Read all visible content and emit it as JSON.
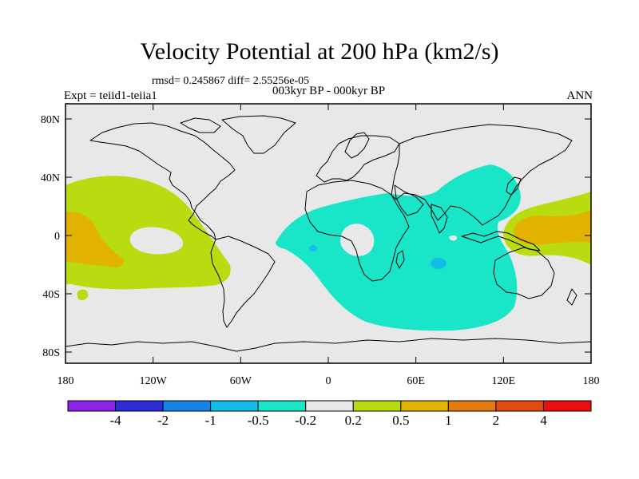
{
  "title": "Velocity Potential at 200 hPa (km2/s)",
  "stats": "rmsd= 0.245867 diff= 2.55256e-05",
  "subtitle": "003kyr BP - 000kyr BP",
  "experiment": "Expt = teiid1-teiia1",
  "season": "ANN",
  "lat_ticks": [
    "80N",
    "40N",
    "0",
    "40S",
    "80S"
  ],
  "lon_ticks": [
    "180",
    "120W",
    "60W",
    "0",
    "60E",
    "120E",
    "180"
  ],
  "legend": {
    "labels": [
      "-4",
      "-2",
      "-1",
      "-0.5",
      "-0.2",
      "0.2",
      "0.5",
      "1",
      "2",
      "4"
    ],
    "colors": [
      "#8b24e8",
      "#2d2ed8",
      "#1583e8",
      "#12bde8",
      "#19e6c8",
      "#e8e8e8",
      "#b8dc10",
      "#e1b200",
      "#e47a10",
      "#e24a10",
      "#e8100c"
    ]
  },
  "colors": {
    "neutral": "#e8e8e8",
    "positive_weak": "#b8dc10",
    "positive_mid": "#e1b200",
    "negative_weak": "#19e6c8",
    "negative_mid": "#12bde8"
  }
}
